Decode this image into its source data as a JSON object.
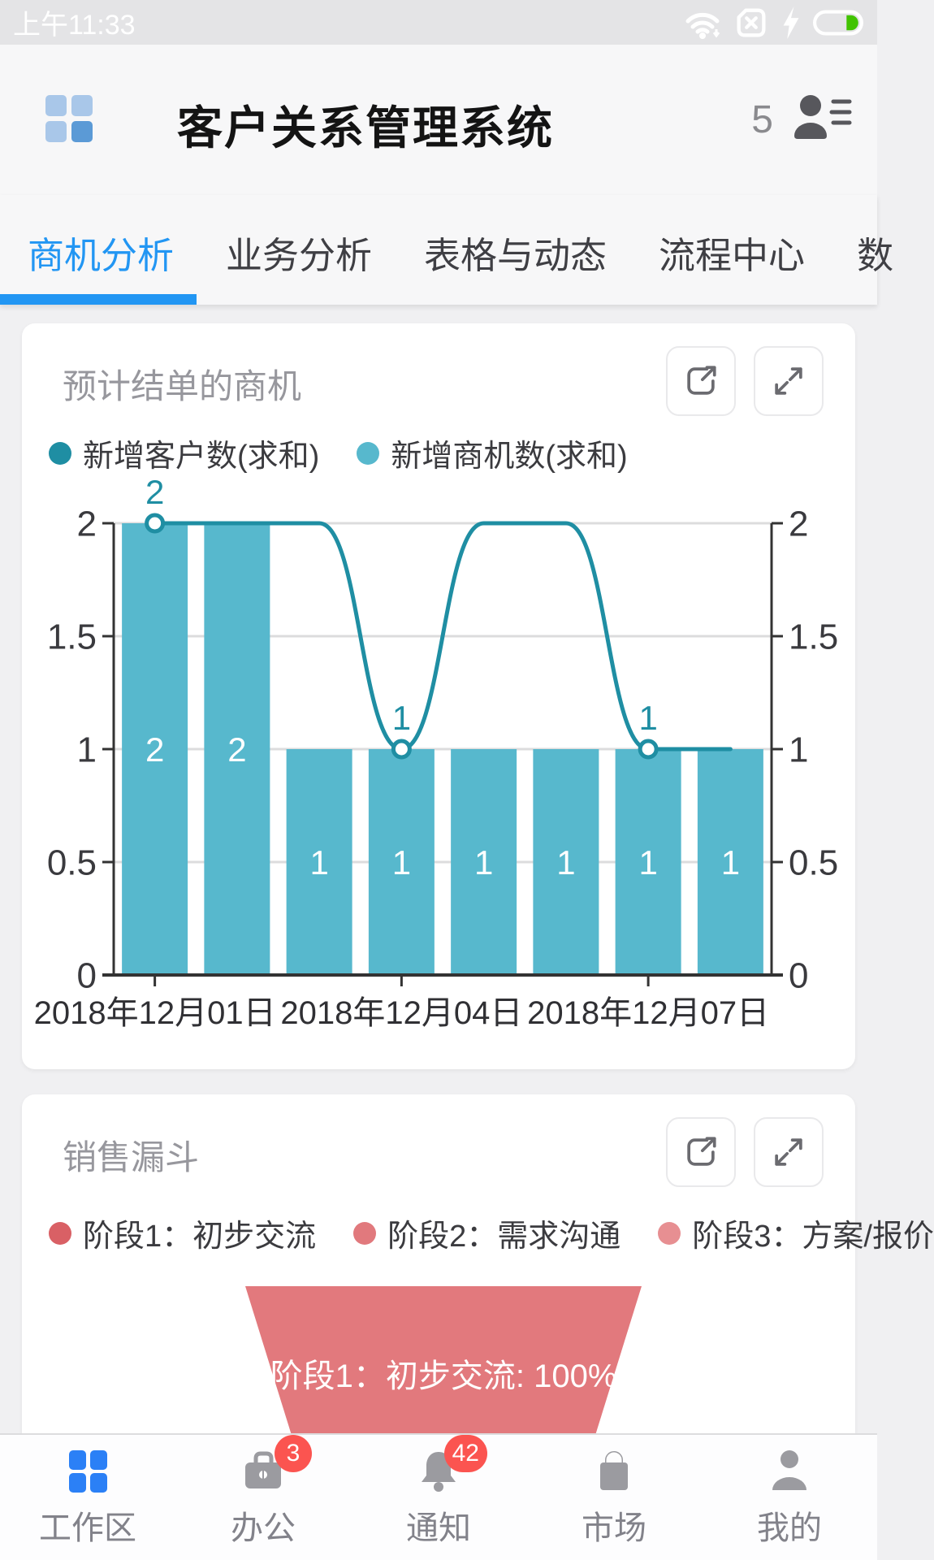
{
  "status_bar": {
    "time": "上午11:33",
    "icons": [
      "wifi-icon",
      "sim-missing-icon",
      "charging-icon",
      "battery-icon"
    ]
  },
  "header": {
    "title": "客户关系管理系统",
    "contact_count": "5"
  },
  "tabs": [
    {
      "label": "商机分析",
      "active": true
    },
    {
      "label": "业务分析",
      "active": false
    },
    {
      "label": "表格与动态",
      "active": false
    },
    {
      "label": "流程中心",
      "active": false
    },
    {
      "label": "数",
      "active": false
    }
  ],
  "card1": {
    "title": "预计结单的商机"
  },
  "card2": {
    "title": "销售漏斗",
    "funnel_label": "阶段1：初步交流: 100%"
  },
  "chart_data": [
    {
      "type": "bar",
      "title": "预计结单的商机",
      "categories": [
        "2018年12月01日",
        "",
        "",
        "2018年12月04日",
        "",
        "",
        "2018年12月07日",
        ""
      ],
      "x_tick_labels": [
        {
          "index": 0,
          "label": "2018年12月01日"
        },
        {
          "index": 3,
          "label": "2018年12月04日"
        },
        {
          "index": 6,
          "label": "2018年12月07日"
        }
      ],
      "series": [
        {
          "name": "新增客户数(求和)",
          "type": "line",
          "values": [
            2,
            2,
            2,
            1,
            2,
            2,
            1,
            1
          ],
          "color": "#1f8ea3",
          "marker_indices": [
            0,
            3,
            6
          ]
        },
        {
          "name": "新增商机数(求和)",
          "type": "bar",
          "values": [
            2,
            2,
            1,
            1,
            1,
            1,
            1,
            1
          ],
          "color": "#57b8cd"
        }
      ],
      "ylim": [
        0,
        2
      ],
      "yticks": [
        0,
        0.5,
        1,
        1.5,
        2
      ],
      "dual_y_axis": true,
      "grid": true,
      "legend_position": "top"
    },
    {
      "type": "funnel",
      "title": "销售漏斗",
      "legend": [
        {
          "label": "阶段1：初步交流",
          "color": "#d96065"
        },
        {
          "label": "阶段2：需求沟通",
          "color": "#e1797d"
        },
        {
          "label": "阶段3：方案/报价",
          "color": "#e78f92"
        }
      ],
      "segments": [
        {
          "label": "阶段1：初步交流",
          "percent": 100,
          "visible_label": "阶段1：初步交流: 100%",
          "color": "#e2797d"
        }
      ]
    }
  ],
  "bottom_nav": [
    {
      "label": "工作区",
      "badge": ""
    },
    {
      "label": "办公",
      "badge": "3"
    },
    {
      "label": "通知",
      "badge": "42"
    },
    {
      "label": "市场",
      "badge": ""
    },
    {
      "label": "我的",
      "badge": ""
    }
  ],
  "colors": {
    "accent_blue": "#2296f3",
    "nav_active_blue": "#2b80f6",
    "line_teal": "#1f8ea3",
    "bar_teal": "#57b8cd",
    "funnel_red": "#e2797d",
    "badge_red": "#fb5450",
    "battery_green": "#41c300"
  }
}
